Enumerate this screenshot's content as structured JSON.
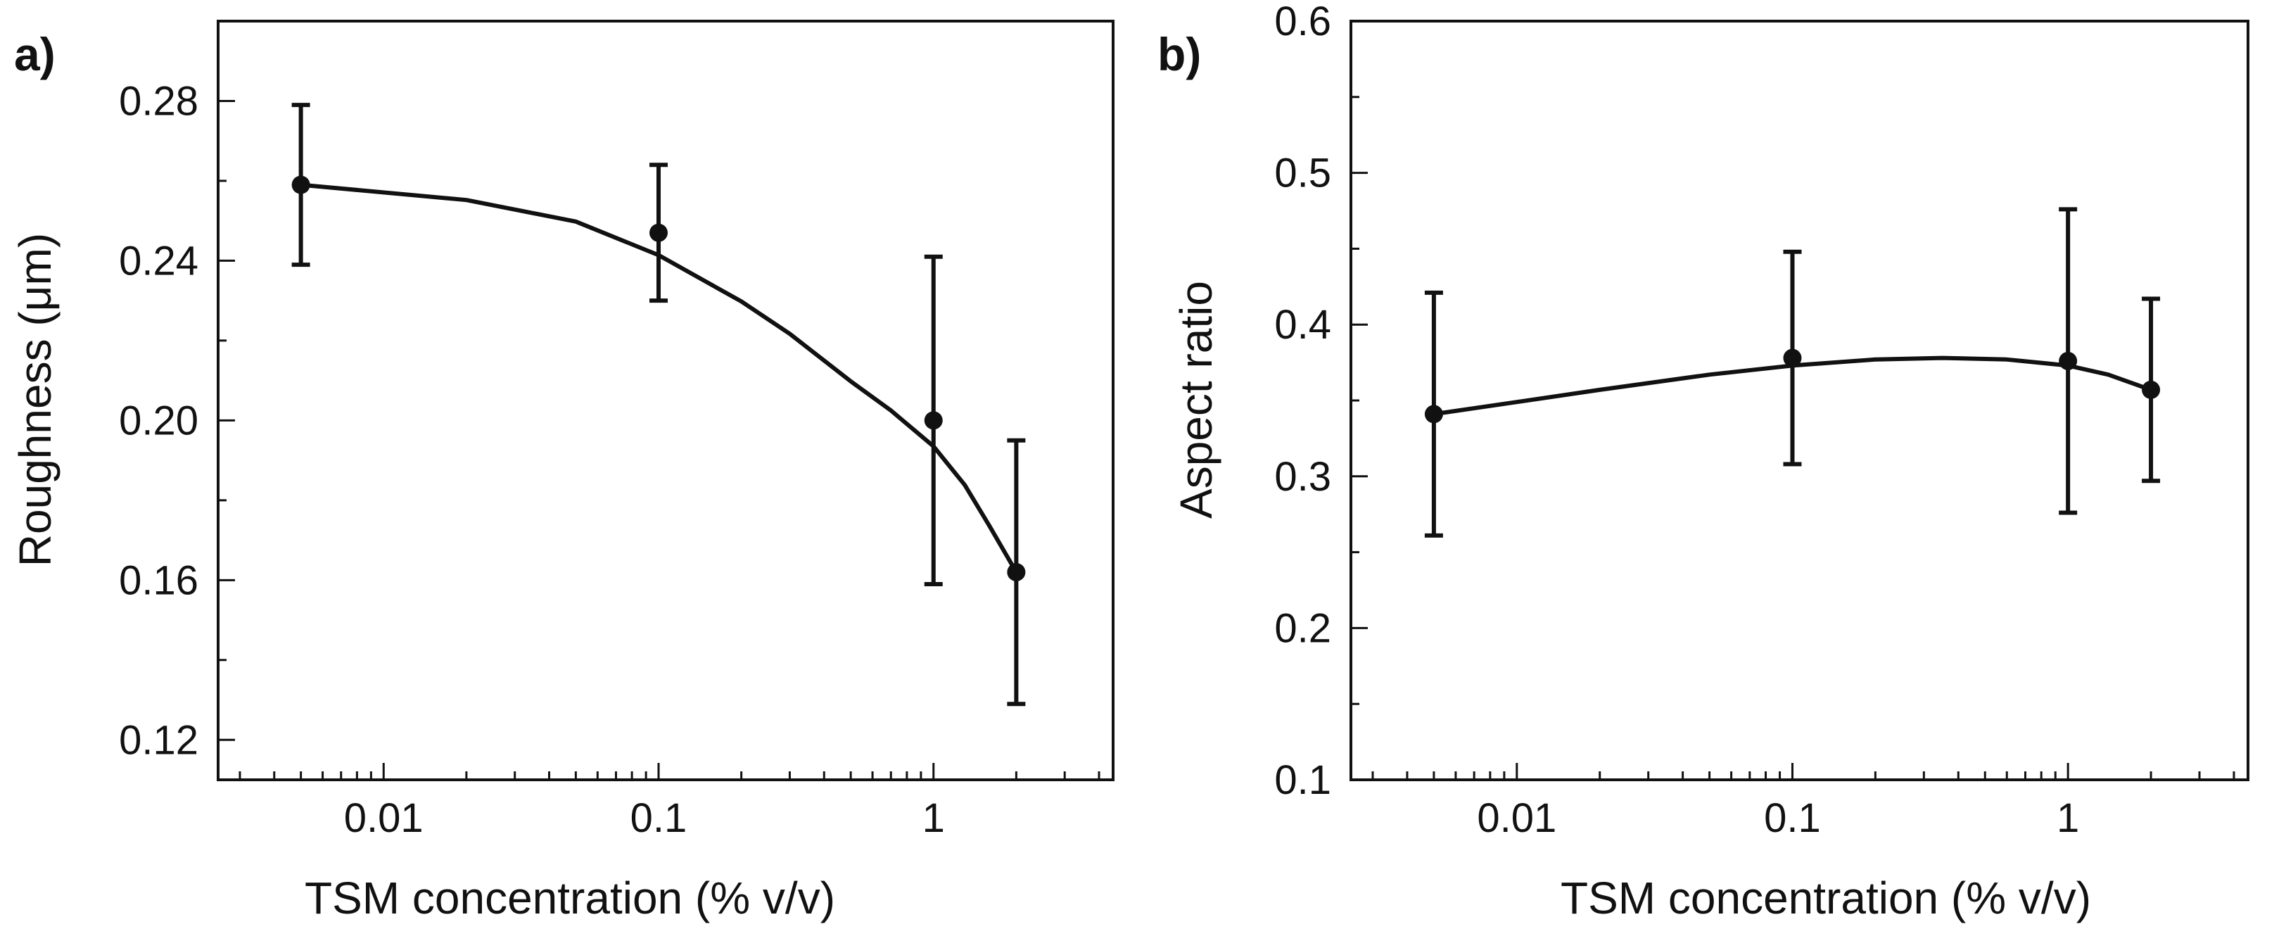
{
  "chart_data": [
    {
      "type": "scatter",
      "panel_label": "a)",
      "xlabel": "TSM concentration (% v/v)",
      "ylabel": "Roughness (μm)",
      "x_scale": "log",
      "xlim": [
        0.0025,
        4.5
      ],
      "ylim": [
        0.11,
        0.3
      ],
      "x_ticks": [
        {
          "value": 0.01,
          "label": "0.01"
        },
        {
          "value": 0.1,
          "label": "0.1"
        },
        {
          "value": 1,
          "label": "1"
        }
      ],
      "y_ticks": [
        {
          "value": 0.12,
          "label": "0.12"
        },
        {
          "value": 0.16,
          "label": "0.16"
        },
        {
          "value": 0.2,
          "label": "0.20"
        },
        {
          "value": 0.24,
          "label": "0.24"
        },
        {
          "value": 0.28,
          "label": "0.28"
        }
      ],
      "points": [
        {
          "x": 0.005,
          "y": 0.259,
          "y_low": 0.239,
          "y_high": 0.279
        },
        {
          "x": 0.1,
          "y": 0.247,
          "y_low": 0.23,
          "y_high": 0.264
        },
        {
          "x": 1,
          "y": 0.2,
          "y_low": 0.159,
          "y_high": 0.241
        },
        {
          "x": 2,
          "y": 0.162,
          "y_low": 0.129,
          "y_high": 0.195
        }
      ],
      "fit_curve": [
        {
          "x": 0.005,
          "y": 0.259
        },
        {
          "x": 0.02,
          "y": 0.2552
        },
        {
          "x": 0.05,
          "y": 0.2498
        },
        {
          "x": 0.1,
          "y": 0.2414
        },
        {
          "x": 0.2,
          "y": 0.2298
        },
        {
          "x": 0.3,
          "y": 0.2217
        },
        {
          "x": 0.5,
          "y": 0.2098
        },
        {
          "x": 0.7,
          "y": 0.2025
        },
        {
          "x": 1,
          "y": 0.1935
        },
        {
          "x": 1.3,
          "y": 0.1838
        },
        {
          "x": 1.6,
          "y": 0.1735
        },
        {
          "x": 2,
          "y": 0.162
        }
      ],
      "grid": false,
      "legend": "none"
    },
    {
      "type": "scatter",
      "panel_label": "b)",
      "xlabel": "TSM concentration (% v/v)",
      "ylabel": "Aspect ratio",
      "x_scale": "log",
      "xlim": [
        0.0025,
        4.5
      ],
      "ylim": [
        0.1,
        0.6
      ],
      "x_ticks": [
        {
          "value": 0.01,
          "label": "0.01"
        },
        {
          "value": 0.1,
          "label": "0.1"
        },
        {
          "value": 1,
          "label": "1"
        }
      ],
      "y_ticks": [
        {
          "value": 0.1,
          "label": "0.1"
        },
        {
          "value": 0.2,
          "label": "0.2"
        },
        {
          "value": 0.3,
          "label": "0.3"
        },
        {
          "value": 0.4,
          "label": "0.4"
        },
        {
          "value": 0.5,
          "label": "0.5"
        },
        {
          "value": 0.6,
          "label": "0.6"
        }
      ],
      "points": [
        {
          "x": 0.005,
          "y": 0.341,
          "y_low": 0.261,
          "y_high": 0.421
        },
        {
          "x": 0.1,
          "y": 0.378,
          "y_low": 0.308,
          "y_high": 0.448
        },
        {
          "x": 1,
          "y": 0.376,
          "y_low": 0.276,
          "y_high": 0.476
        },
        {
          "x": 2,
          "y": 0.357,
          "y_low": 0.297,
          "y_high": 0.417
        }
      ],
      "fit_curve": [
        {
          "x": 0.005,
          "y": 0.341
        },
        {
          "x": 0.01,
          "y": 0.349
        },
        {
          "x": 0.02,
          "y": 0.357
        },
        {
          "x": 0.05,
          "y": 0.367
        },
        {
          "x": 0.1,
          "y": 0.373
        },
        {
          "x": 0.2,
          "y": 0.377
        },
        {
          "x": 0.35,
          "y": 0.378
        },
        {
          "x": 0.6,
          "y": 0.377
        },
        {
          "x": 1,
          "y": 0.373
        },
        {
          "x": 1.4,
          "y": 0.367
        },
        {
          "x": 2,
          "y": 0.357
        }
      ],
      "grid": false,
      "legend": "none"
    }
  ]
}
